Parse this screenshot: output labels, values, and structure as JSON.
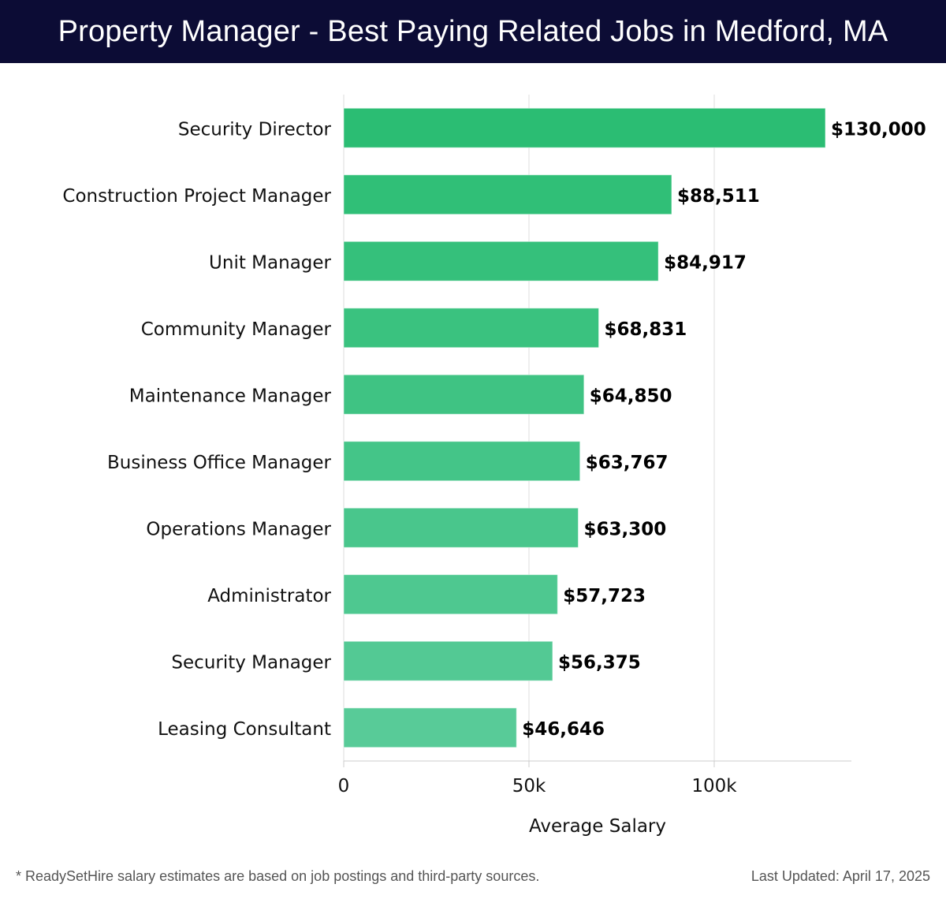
{
  "header": {
    "title": "Property Manager - Best Paying Related Jobs in Medford, MA"
  },
  "chart_data": {
    "type": "bar",
    "orientation": "horizontal",
    "title": "Property Manager - Best Paying Related Jobs in Medford, MA",
    "categories": [
      "Security Director",
      "Construction Project Manager",
      "Unit Manager",
      "Community Manager",
      "Maintenance Manager",
      "Business Office Manager",
      "Operations Manager",
      "Administrator",
      "Security Manager",
      "Leasing Consultant"
    ],
    "values": [
      130000,
      88511,
      84917,
      68831,
      64850,
      63767,
      63300,
      57723,
      56375,
      46646
    ],
    "value_labels": [
      "$130,000",
      "$88,511",
      "$84,917",
      "$68,831",
      "$64,850",
      "$63,767",
      "$63,300",
      "$57,723",
      "$56,375",
      "$46,646"
    ],
    "xlabel": "Average Salary",
    "ylabel": "",
    "xlim": [
      0,
      137000
    ],
    "xticks": [
      0,
      50000,
      100000
    ],
    "xtick_labels": [
      "0",
      "50k",
      "100k"
    ],
    "grid": true,
    "colors": {
      "top": "#2bbd73",
      "bottom": "#58cb98",
      "grid": "#dddddd"
    }
  },
  "footer": {
    "note": "* ReadySetHire salary estimates are based on job postings and third-party sources.",
    "updated": "Last Updated: April 17, 2025"
  }
}
